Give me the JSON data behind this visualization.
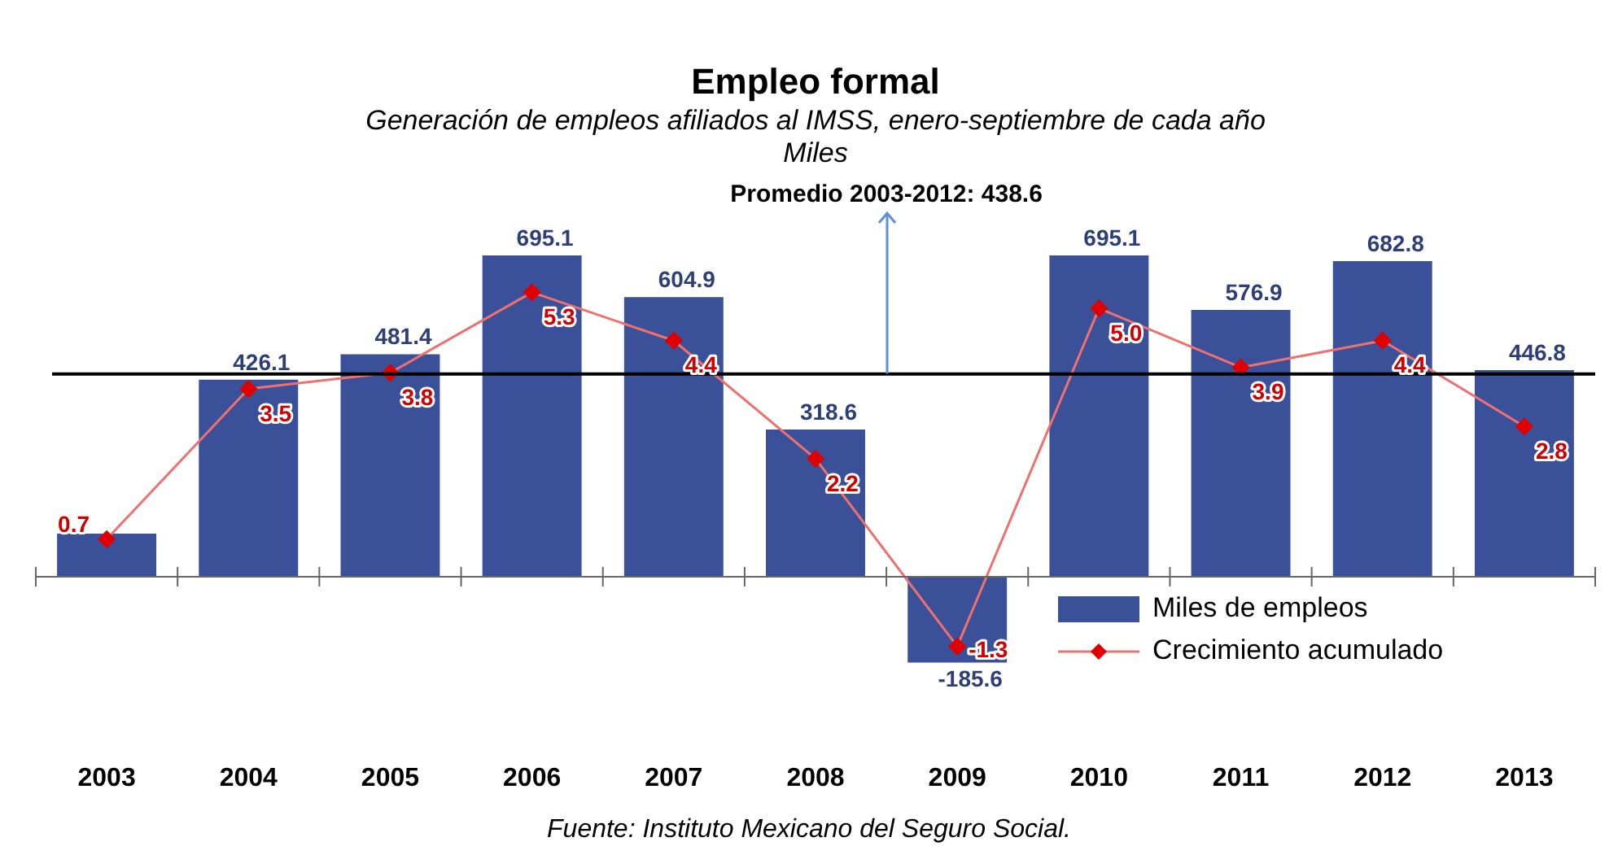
{
  "chart_data": {
    "type": "bar",
    "title": "Empleo formal",
    "subtitle": "Generación de empleos afiliados al IMSS, enero-septiembre de cada año\nMiles",
    "categories": [
      "2003",
      "2004",
      "2005",
      "2006",
      "2007",
      "2008",
      "2009",
      "2010",
      "2011",
      "2012",
      "2013"
    ],
    "series": [
      {
        "name": "Miles de empleos",
        "color": "#3a5199",
        "values": [
          93,
          426.1,
          481.4,
          695.1,
          604.9,
          318.6,
          -185.6,
          695.1,
          576.9,
          682.8,
          446.8
        ],
        "value_labels": [
          null,
          "426.1",
          "481.4",
          "695.1",
          "604.9",
          "318.6",
          "-185.6",
          "695.1",
          "576.9",
          "682.8",
          "446.8"
        ]
      },
      {
        "name": "Crecimiento acumulado",
        "type": "line",
        "axis": "y2",
        "color": "#f07070",
        "marker": "diamond",
        "values": [
          0.7,
          3.5,
          3.8,
          5.3,
          4.4,
          2.2,
          -1.3,
          5.0,
          3.9,
          4.4,
          2.8
        ],
        "value_labels": [
          "0.7",
          "3.5",
          "3.8",
          "5.3",
          "4.4",
          "2.2",
          "-1.3",
          "5.0",
          "3.9",
          "4.4",
          "2.8"
        ]
      }
    ],
    "ref_lines": [
      {
        "axis": "y",
        "value": 438.6,
        "label": "Promedio 2003-2012: 438.6",
        "color": "#000000"
      }
    ],
    "annotations": [
      "Fuente: Instituto Mexicano del Seguro Social."
    ],
    "legend": "bottom right",
    "grid": false,
    "tick_labels": "x"
  }
}
